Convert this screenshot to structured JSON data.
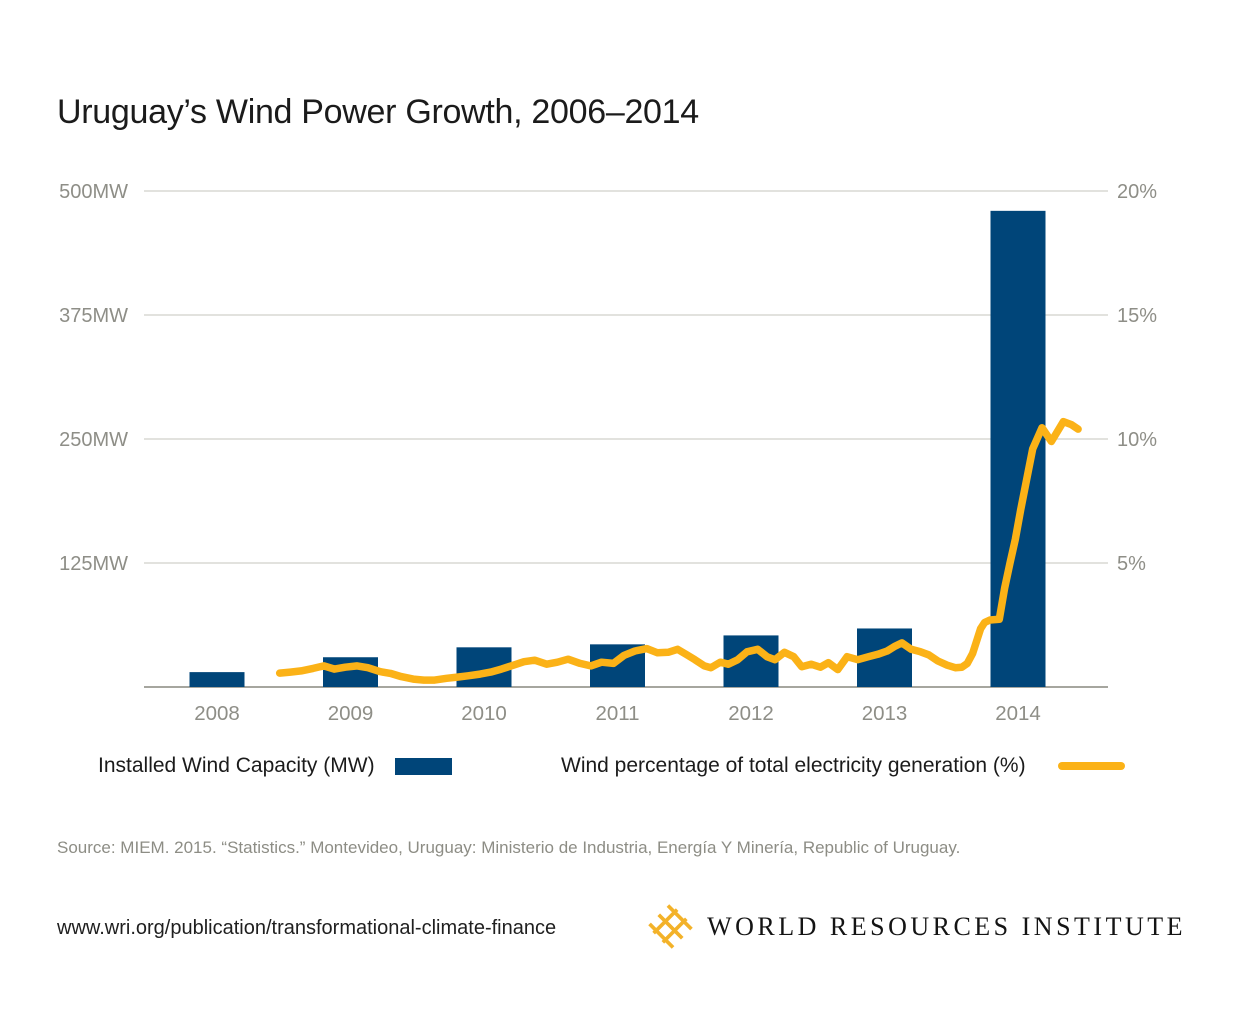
{
  "title": "Uruguay’s Wind Power Growth, 2006–2014",
  "chart_data": {
    "type": "combo-bar-line",
    "title": "Uruguay’s Wind Power Growth, 2006–2014",
    "bar_series": {
      "name": "Installed Wind Capacity (MW)",
      "categories": [
        "2008",
        "2009",
        "2010",
        "2011",
        "2012",
        "2013",
        "2014"
      ],
      "values": [
        15,
        30,
        40,
        43,
        52,
        59,
        480
      ]
    },
    "line_series": {
      "name": "Wind percentage of total electricity generation (%)",
      "points": [
        [
          2008.47,
          0.56
        ],
        [
          2008.55,
          0.6
        ],
        [
          2008.63,
          0.65
        ],
        [
          2008.72,
          0.75
        ],
        [
          2008.8,
          0.85
        ],
        [
          2008.88,
          0.72
        ],
        [
          2008.96,
          0.8
        ],
        [
          2009.05,
          0.85
        ],
        [
          2009.13,
          0.78
        ],
        [
          2009.22,
          0.62
        ],
        [
          2009.3,
          0.55
        ],
        [
          2009.38,
          0.42
        ],
        [
          2009.47,
          0.32
        ],
        [
          2009.55,
          0.28
        ],
        [
          2009.63,
          0.28
        ],
        [
          2009.72,
          0.35
        ],
        [
          2009.8,
          0.4
        ],
        [
          2009.88,
          0.45
        ],
        [
          2009.97,
          0.52
        ],
        [
          2010.05,
          0.6
        ],
        [
          2010.13,
          0.72
        ],
        [
          2010.22,
          0.88
        ],
        [
          2010.3,
          1.02
        ],
        [
          2010.38,
          1.08
        ],
        [
          2010.47,
          0.92
        ],
        [
          2010.55,
          1.0
        ],
        [
          2010.63,
          1.12
        ],
        [
          2010.72,
          0.95
        ],
        [
          2010.8,
          0.85
        ],
        [
          2010.88,
          1.0
        ],
        [
          2010.97,
          0.95
        ],
        [
          2011.05,
          1.28
        ],
        [
          2011.13,
          1.45
        ],
        [
          2011.22,
          1.55
        ],
        [
          2011.3,
          1.38
        ],
        [
          2011.38,
          1.4
        ],
        [
          2011.45,
          1.52
        ],
        [
          2011.52,
          1.3
        ],
        [
          2011.58,
          1.1
        ],
        [
          2011.65,
          0.85
        ],
        [
          2011.7,
          0.78
        ],
        [
          2011.77,
          1.0
        ],
        [
          2011.83,
          0.92
        ],
        [
          2011.9,
          1.1
        ],
        [
          2011.97,
          1.42
        ],
        [
          2012.05,
          1.52
        ],
        [
          2012.12,
          1.22
        ],
        [
          2012.18,
          1.1
        ],
        [
          2012.25,
          1.4
        ],
        [
          2012.32,
          1.22
        ],
        [
          2012.38,
          0.82
        ],
        [
          2012.45,
          0.92
        ],
        [
          2012.52,
          0.8
        ],
        [
          2012.58,
          0.98
        ],
        [
          2012.65,
          0.7
        ],
        [
          2012.72,
          1.22
        ],
        [
          2012.8,
          1.1
        ],
        [
          2012.88,
          1.22
        ],
        [
          2012.95,
          1.32
        ],
        [
          2013.02,
          1.45
        ],
        [
          2013.08,
          1.65
        ],
        [
          2013.13,
          1.78
        ],
        [
          2013.2,
          1.52
        ],
        [
          2013.27,
          1.42
        ],
        [
          2013.33,
          1.3
        ],
        [
          2013.4,
          1.05
        ],
        [
          2013.47,
          0.88
        ],
        [
          2013.53,
          0.78
        ],
        [
          2013.58,
          0.8
        ],
        [
          2013.62,
          0.95
        ],
        [
          2013.66,
          1.35
        ],
        [
          2013.69,
          1.85
        ],
        [
          2013.72,
          2.35
        ],
        [
          2013.75,
          2.6
        ],
        [
          2013.79,
          2.7
        ],
        [
          2013.86,
          2.73
        ],
        [
          2013.9,
          4.0
        ],
        [
          2013.94,
          5.0
        ],
        [
          2013.98,
          5.95
        ],
        [
          2014.02,
          7.15
        ],
        [
          2014.07,
          8.5
        ],
        [
          2014.11,
          9.6
        ],
        [
          2014.18,
          10.45
        ],
        [
          2014.25,
          9.9
        ],
        [
          2014.34,
          10.7
        ],
        [
          2014.4,
          10.58
        ],
        [
          2014.45,
          10.4
        ]
      ]
    },
    "left_axis": {
      "range": [
        0,
        500
      ],
      "ticks": [
        {
          "label": "500MW",
          "value": 500
        },
        {
          "label": "375MW",
          "value": 375
        },
        {
          "label": "250MW",
          "value": 250
        },
        {
          "label": "125MW",
          "value": 125
        }
      ]
    },
    "right_axis": {
      "range": [
        0,
        20
      ],
      "ticks": [
        {
          "label": "20%",
          "value": 20
        },
        {
          "label": "15%",
          "value": 15
        },
        {
          "label": "10%",
          "value": 10
        },
        {
          "label": "5%",
          "value": 5
        }
      ]
    },
    "x_axis": {
      "labels": [
        "2008",
        "2009",
        "2010",
        "2011",
        "2012",
        "2013",
        "2014"
      ]
    },
    "grid": true,
    "legend_position": "bottom",
    "colors": {
      "bar": "#004579",
      "line": "#FBB217",
      "grid": "#D9D9D4",
      "axis": "#A6A69F",
      "tick_text": "#8E8E87"
    }
  },
  "legend": {
    "capacity_label": "Installed Wind Capacity (MW)",
    "percentage_label": "Wind percentage of total electricity generation (%)"
  },
  "source": "Source: MIEM. 2015. “Statistics.” Montevideo, Uruguay: Ministerio de Industria, Energía Y Minería, Republic of Uruguay.",
  "footer": {
    "url": "www.wri.org/publication/transformational-climate-finance",
    "logo_icon": "wri-weave-icon",
    "logo_text": "WORLD RESOURCES INSTITUTE",
    "logo_color": "#F3B229"
  }
}
